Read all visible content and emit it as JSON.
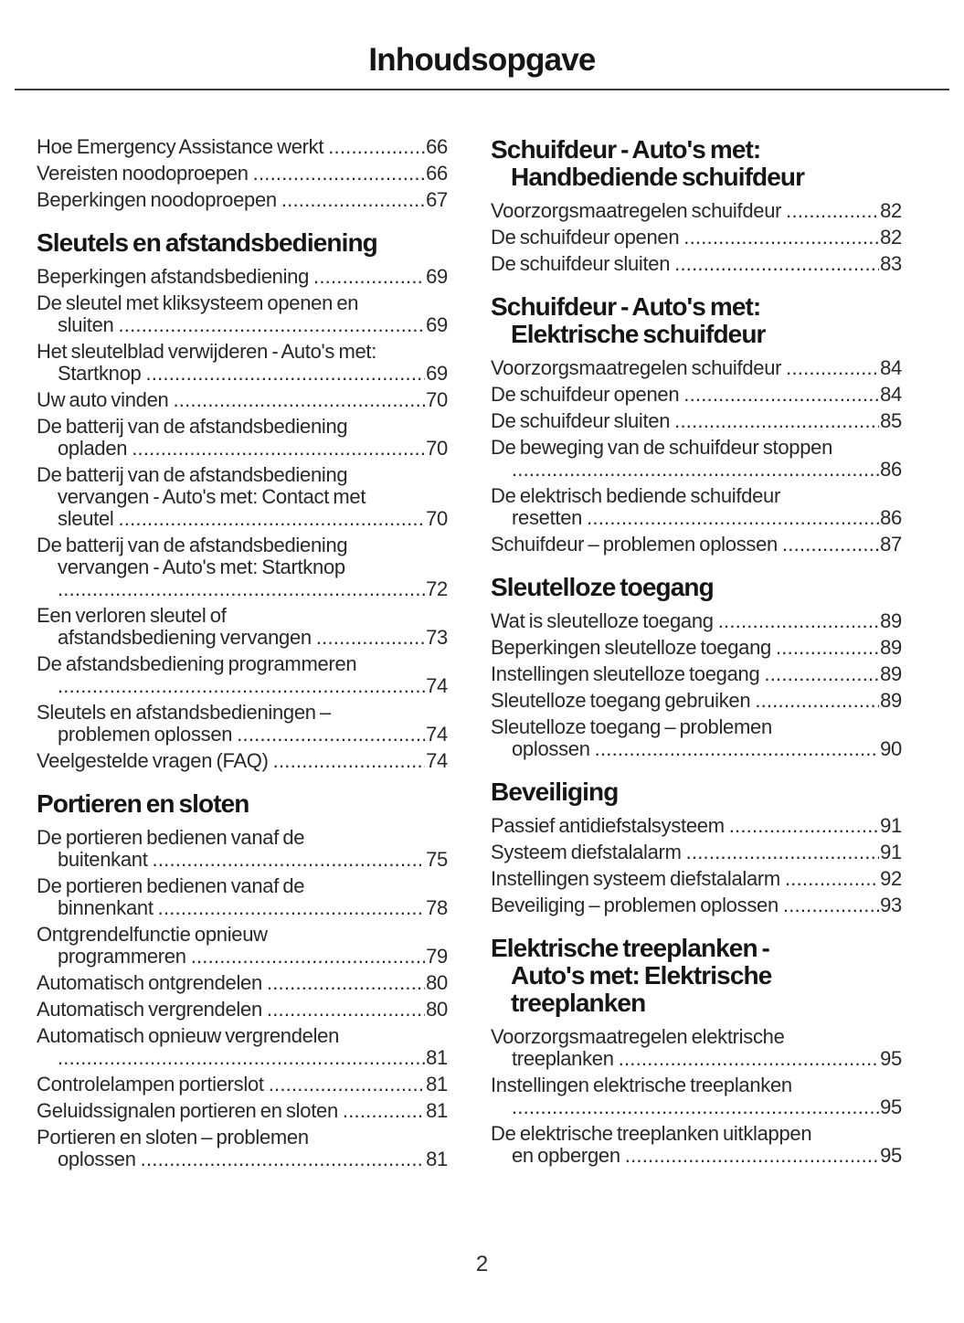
{
  "title": "Inhoudsopgave",
  "footer": {
    "page_number": "2"
  },
  "colors": {
    "text": "#28282b",
    "heading": "#161618",
    "rule": "#3b3b3d",
    "background": "#ffffff"
  },
  "columns": [
    {
      "blocks": [
        {
          "type": "entries",
          "items": [
            {
              "lines": [
                "Hoe Emergency Assistance werkt"
              ],
              "page": "66"
            },
            {
              "lines": [
                "Vereisten noodoproepen"
              ],
              "page": "66"
            },
            {
              "lines": [
                "Beperkingen noodoproepen"
              ],
              "page": "67"
            }
          ]
        },
        {
          "type": "heading",
          "lines": [
            "Sleutels en afstandsbediening"
          ]
        },
        {
          "type": "entries",
          "items": [
            {
              "lines": [
                "Beperkingen afstandsbediening"
              ],
              "page": "69"
            },
            {
              "lines": [
                "De sleutel met kliksysteem openen en",
                "sluiten"
              ],
              "page": "69"
            },
            {
              "lines": [
                "Het sleutelblad verwijderen - Auto's met:",
                "Startknop"
              ],
              "page": "69"
            },
            {
              "lines": [
                "Uw auto vinden"
              ],
              "page": "70"
            },
            {
              "lines": [
                "De batterij van de afstandsbediening",
                "opladen"
              ],
              "page": "70"
            },
            {
              "lines": [
                "De batterij van de afstandsbediening",
                "vervangen - Auto's met: Contact met",
                "sleutel"
              ],
              "page": "70"
            },
            {
              "lines": [
                "De batterij van de afstandsbediening",
                "vervangen - Auto's met: Startknop",
                ""
              ],
              "page": "72"
            },
            {
              "lines": [
                "Een verloren sleutel of",
                "afstandsbediening vervangen"
              ],
              "page": "73"
            },
            {
              "lines": [
                "De afstandsbediening programmeren",
                ""
              ],
              "page": "74"
            },
            {
              "lines": [
                "Sleutels en afstandsbedieningen –",
                "problemen oplossen"
              ],
              "page": "74"
            },
            {
              "lines": [
                "Veelgestelde vragen (FAQ)"
              ],
              "page": "74"
            }
          ]
        },
        {
          "type": "heading",
          "lines": [
            "Portieren en sloten"
          ]
        },
        {
          "type": "entries",
          "items": [
            {
              "lines": [
                "De portieren bedienen vanaf de",
                "buitenkant"
              ],
              "page": "75"
            },
            {
              "lines": [
                "De portieren bedienen vanaf de",
                "binnenkant"
              ],
              "page": "78"
            },
            {
              "lines": [
                "Ontgrendelfunctie opnieuw",
                "programmeren"
              ],
              "page": "79"
            },
            {
              "lines": [
                "Automatisch ontgrendelen"
              ],
              "page": "80"
            },
            {
              "lines": [
                "Automatisch vergrendelen"
              ],
              "page": "80"
            },
            {
              "lines": [
                "Automatisch opnieuw vergrendelen",
                ""
              ],
              "page": "81"
            },
            {
              "lines": [
                "Controlelampen portierslot"
              ],
              "page": "81"
            },
            {
              "lines": [
                "Geluidssignalen portieren en sloten"
              ],
              "page": "81"
            },
            {
              "lines": [
                "Portieren en sloten – problemen",
                "oplossen"
              ],
              "page": "81"
            }
          ]
        }
      ]
    },
    {
      "blocks": [
        {
          "type": "heading",
          "lines": [
            "Schuifdeur - Auto's met:",
            "Handbediende schuifdeur"
          ]
        },
        {
          "type": "entries",
          "items": [
            {
              "lines": [
                "Voorzorgsmaatregelen schuifdeur"
              ],
              "page": "82"
            },
            {
              "lines": [
                "De schuifdeur openen"
              ],
              "page": "82"
            },
            {
              "lines": [
                "De schuifdeur sluiten"
              ],
              "page": "83"
            }
          ]
        },
        {
          "type": "heading",
          "lines": [
            "Schuifdeur - Auto's met:",
            "Elektrische schuifdeur"
          ]
        },
        {
          "type": "entries",
          "items": [
            {
              "lines": [
                "Voorzorgsmaatregelen schuifdeur"
              ],
              "page": "84"
            },
            {
              "lines": [
                "De schuifdeur openen"
              ],
              "page": "84"
            },
            {
              "lines": [
                "De schuifdeur sluiten"
              ],
              "page": "85"
            },
            {
              "lines": [
                "De beweging van de schuifdeur stoppen",
                ""
              ],
              "page": "86"
            },
            {
              "lines": [
                "De elektrisch bediende schuifdeur",
                "resetten"
              ],
              "page": "86"
            },
            {
              "lines": [
                "Schuifdeur – problemen oplossen"
              ],
              "page": "87"
            }
          ]
        },
        {
          "type": "heading",
          "lines": [
            "Sleutelloze toegang"
          ]
        },
        {
          "type": "entries",
          "items": [
            {
              "lines": [
                "Wat is sleutelloze toegang"
              ],
              "page": "89"
            },
            {
              "lines": [
                "Beperkingen sleutelloze toegang"
              ],
              "page": "89"
            },
            {
              "lines": [
                "Instellingen sleutelloze toegang"
              ],
              "page": "89"
            },
            {
              "lines": [
                "Sleutelloze toegang gebruiken"
              ],
              "page": "89"
            },
            {
              "lines": [
                "Sleutelloze toegang – problemen",
                "oplossen"
              ],
              "page": "90"
            }
          ]
        },
        {
          "type": "heading",
          "lines": [
            "Beveiliging"
          ]
        },
        {
          "type": "entries",
          "items": [
            {
              "lines": [
                "Passief antidiefstalsysteem"
              ],
              "page": "91"
            },
            {
              "lines": [
                "Systeem diefstalalarm"
              ],
              "page": "91"
            },
            {
              "lines": [
                "Instellingen systeem diefstalalarm"
              ],
              "page": "92"
            },
            {
              "lines": [
                "Beveiliging – problemen oplossen"
              ],
              "page": "93"
            }
          ]
        },
        {
          "type": "heading",
          "lines": [
            "Elektrische treeplanken -",
            "Auto's met: Elektrische",
            "treeplanken"
          ]
        },
        {
          "type": "entries",
          "items": [
            {
              "lines": [
                "Voorzorgsmaatregelen elektrische",
                "treeplanken"
              ],
              "page": "95"
            },
            {
              "lines": [
                "Instellingen elektrische treeplanken",
                ""
              ],
              "page": "95"
            },
            {
              "lines": [
                "De elektrische treeplanken uitklappen",
                "en opbergen"
              ],
              "page": "95"
            }
          ]
        }
      ]
    }
  ]
}
